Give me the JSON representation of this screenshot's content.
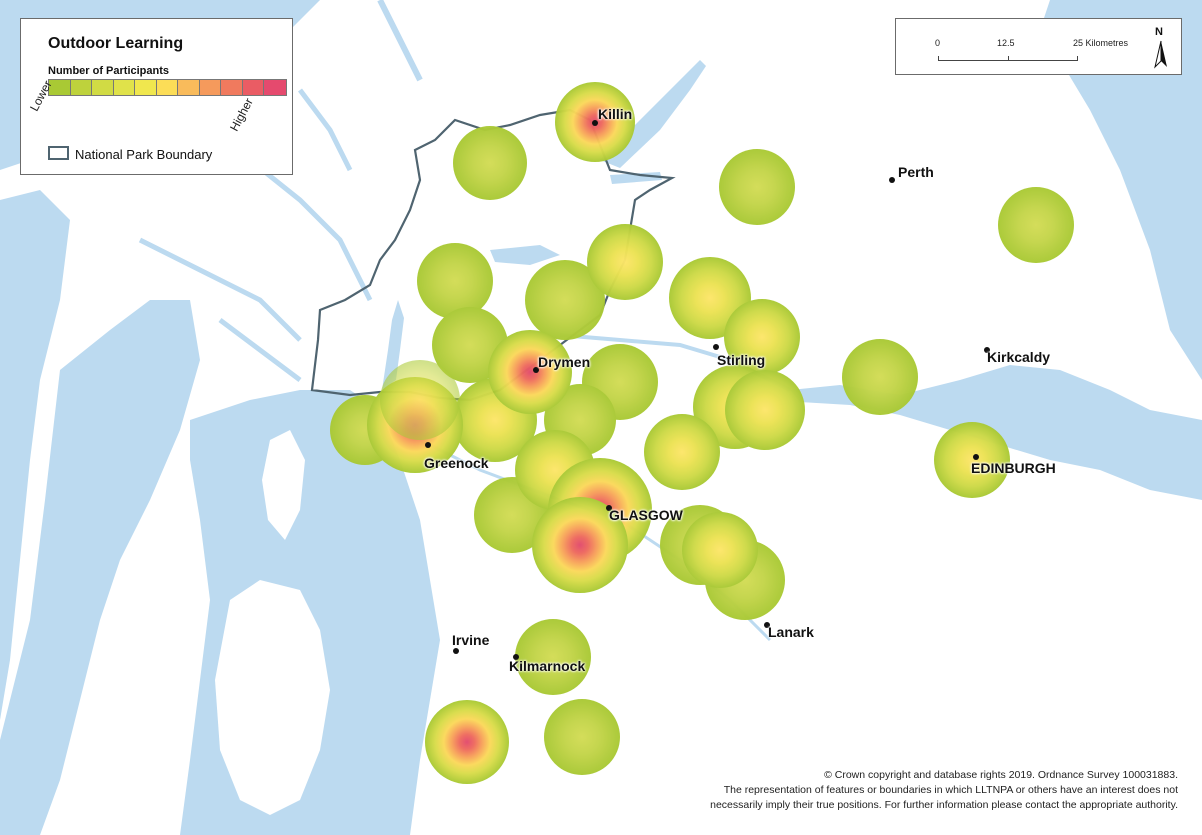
{
  "legend": {
    "title": "Outdoor Learning",
    "subtitle": "Number of Participants",
    "low_label": "Lower",
    "high_label": "Higher",
    "ramp_colors": [
      "#a9c934",
      "#bed23c",
      "#d1db44",
      "#e0e24a",
      "#f0e74e",
      "#fcdd57",
      "#f9bb5b",
      "#f59a5c",
      "#f07a5e",
      "#ea5c64",
      "#e54a6e"
    ],
    "boundary_label": "National Park Boundary",
    "boundary_color": "#4f6470"
  },
  "scale_bar": {
    "ticks": [
      "0",
      "12.5",
      "25"
    ],
    "unit": "Kilometres",
    "north_label": "N"
  },
  "towns": [
    {
      "id": "killin",
      "name": "Killin"
    },
    {
      "id": "perth",
      "name": "Perth"
    },
    {
      "id": "drymen",
      "name": "Drymen"
    },
    {
      "id": "stirling",
      "name": "Stirling"
    },
    {
      "id": "kirkcaldy",
      "name": "Kirkcaldy"
    },
    {
      "id": "greenock",
      "name": "Greenock"
    },
    {
      "id": "edinburgh",
      "name": "EDINBURGH"
    },
    {
      "id": "glasgow",
      "name": "GLASGOW"
    },
    {
      "id": "lanark",
      "name": "Lanark"
    },
    {
      "id": "irvine",
      "name": "Irvine"
    },
    {
      "id": "kilmarnock",
      "name": "Kilmarnock"
    }
  ],
  "colors": {
    "water": "#bcdaf0",
    "land": "#ffffff",
    "heat_low": "#a9c934",
    "heat_high": "#e54a6e"
  },
  "attribution": {
    "line1": "© Crown copyright and database rights 2019.  Ordnance Survey 100031883.",
    "line2": "The representation of features or boundaries in which LLTNPA or others have an interest does not",
    "line3": "necessarily imply their true positions. For further information please contact the appropriate authority."
  }
}
